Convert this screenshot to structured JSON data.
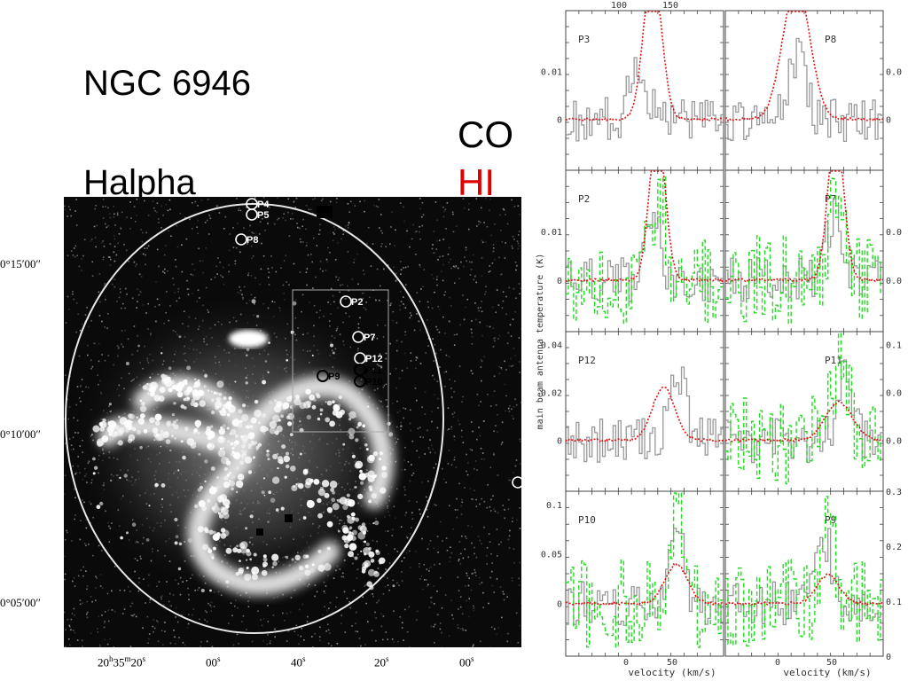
{
  "titles": {
    "galaxy": "NGC 6946",
    "tracer1": "CO",
    "tracer2": "HI",
    "map": "Halpha"
  },
  "colors": {
    "co": "#999999",
    "hi": "#e01010",
    "halpha_spectrum": "#22dd22",
    "hi_title": "#e00000"
  },
  "galaxy_map": {
    "dec_labels": [
      "0°15′00″",
      "0°10′00″",
      "0°05′00″"
    ],
    "ra_labels": [
      "20h35m20s",
      "00s",
      "40s",
      "20s",
      "00s"
    ],
    "pointings": [
      {
        "label": "P4",
        "type": "open"
      },
      {
        "label": "P5",
        "type": "open"
      },
      {
        "label": "P8",
        "type": "open"
      },
      {
        "label": "P2",
        "type": "open"
      },
      {
        "label": "P7",
        "type": "open"
      },
      {
        "label": "P12",
        "type": "open"
      },
      {
        "label": "P11",
        "type": "dark"
      },
      {
        "label": "P10",
        "type": "dark"
      },
      {
        "label": "P9",
        "type": "dark"
      },
      {
        "label": "P3",
        "type": "open"
      }
    ]
  },
  "chart_data": {
    "type": "line",
    "xlabel": "velocity (km/s)",
    "ylabel": "main beam antenna temperature (K)",
    "top_axis_ticks": [
      "100",
      "150"
    ],
    "x_ticks": [
      "0",
      "50",
      "0",
      "50"
    ],
    "panels": [
      {
        "name": "P3",
        "yticks_left": [
          "0.01",
          "0"
        ],
        "yticks_right": []
      },
      {
        "name": "P8",
        "yticks_left": [],
        "yticks_right": [
          "0.0",
          "0"
        ]
      },
      {
        "name": "P2",
        "yticks_left": [
          "0.01",
          "0"
        ],
        "yticks_right": []
      },
      {
        "name": "P7",
        "yticks_left": [],
        "yticks_right": [
          "0.0",
          "0.0"
        ]
      },
      {
        "name": "P12",
        "yticks_left": [
          "0.04",
          "0.02",
          "0"
        ],
        "yticks_right": []
      },
      {
        "name": "P11",
        "yticks_left": [],
        "yticks_right": [
          "0.1",
          "0.0",
          "0.0"
        ]
      },
      {
        "name": "P10",
        "yticks_left": [
          "0.1",
          "0.05",
          "0"
        ],
        "yticks_right": []
      },
      {
        "name": "P9",
        "yticks_left": [],
        "yticks_right": [
          "0.3",
          "0.2",
          "0.1",
          "0"
        ]
      }
    ]
  }
}
